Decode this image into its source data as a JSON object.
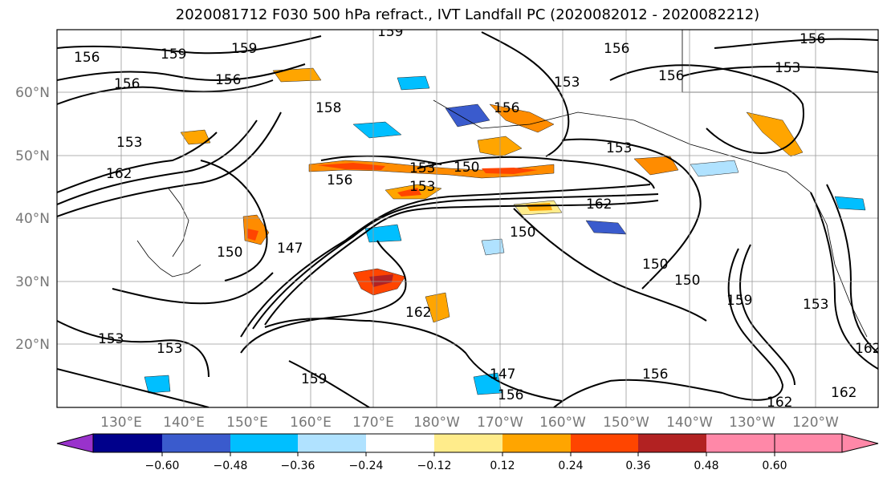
{
  "title": "2020081712 F030 500 hPa refract., IVT Landfall PC (2020082012 - 2020082212)",
  "lat_labels": [
    "60°N",
    "50°N",
    "40°N",
    "30°N",
    "20°N"
  ],
  "lon_labels": [
    "130°E",
    "140°E",
    "150°E",
    "160°E",
    "170°E",
    "180°W",
    "170°W",
    "160°W",
    "150°W",
    "140°W",
    "130°W",
    "120°W"
  ],
  "contour_labels": [
    "159",
    "156",
    "159",
    "159",
    "156",
    "156",
    "153",
    "158",
    "153",
    "156",
    "153",
    "150",
    "153",
    "162",
    "156",
    "153",
    "162",
    "156",
    "150",
    "147",
    "153",
    "162",
    "156",
    "150",
    "156",
    "153",
    "150",
    "159",
    "156",
    "153",
    "150",
    "147",
    "153",
    "156",
    "162",
    "162",
    "159",
    "162"
  ],
  "colorbar": {
    "colors": [
      "#9932CC",
      "#00008B",
      "#3A5BCD",
      "#00BFFF",
      "#B0E2FF",
      "#FFFFFF",
      "#FFEC8B",
      "#FFA500",
      "#FF4500",
      "#B22222",
      "#FF88A8"
    ],
    "tick_labels": [
      "−0.60",
      "−0.48",
      "−0.36",
      "−0.24",
      "−0.12",
      "0.12",
      "0.24",
      "0.36",
      "0.48",
      "0.60"
    ]
  }
}
